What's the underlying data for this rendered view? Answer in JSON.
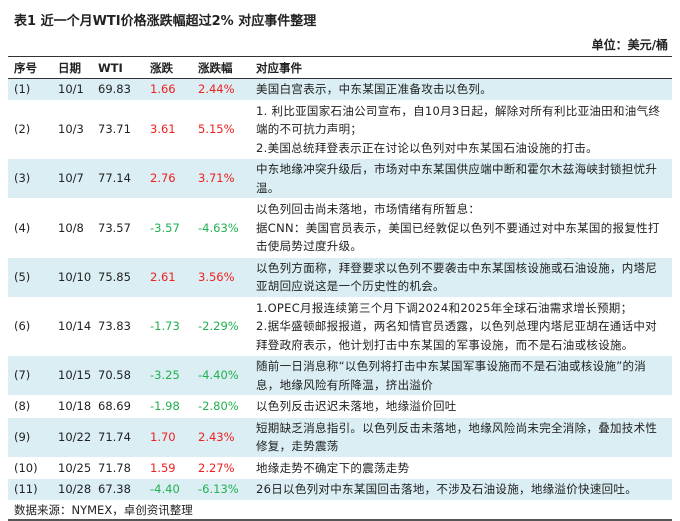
{
  "title": "表1 近一个月WTI价格涨跌幅超过2% 对应事件整理",
  "unit": "单位：美元/桶",
  "headers": [
    "序号",
    "日期",
    "WTI",
    "涨跌",
    "涨跌幅",
    "对应事件"
  ],
  "rows": [
    {
      "no": "(1)",
      "date": "10/1",
      "wti": "69.83",
      "chg": "1.66",
      "pct": "2.44%",
      "dir": "up",
      "event": [
        "美国白宫表示，中东某国正准备攻击以色列。"
      ]
    },
    {
      "no": "(2)",
      "date": "10/3",
      "wti": "73.71",
      "chg": "3.61",
      "pct": "5.15%",
      "dir": "up",
      "event": [
        "1. 利比亚国家石油公司宣布，自10月3日起，解除对所有利比亚油田和油气终端的不可抗力声明；",
        "2.美国总统拜登表示正在讨论以色列对中东某国石油设施的打击。"
      ]
    },
    {
      "no": "(3)",
      "date": "10/7",
      "wti": "77.14",
      "chg": "2.76",
      "pct": "3.71%",
      "dir": "up",
      "event": [
        "中东地缘冲突升级后，市场对中东某国供应端中断和霍尔木兹海峡封锁担忧升温。"
      ]
    },
    {
      "no": "(4)",
      "date": "10/8",
      "wti": "73.57",
      "chg": "-3.57",
      "pct": "-4.63%",
      "dir": "down",
      "event": [
        "以色列回击尚未落地，市场情绪有所暂息：",
        "据CNN：美国官员表示，美国已经敦促以色列不要通过对中东某国的报复性打击使局势过度升级。"
      ]
    },
    {
      "no": "(5)",
      "date": "10/10",
      "wti": "75.85",
      "chg": "2.61",
      "pct": "3.56%",
      "dir": "up",
      "event": [
        "以色列方面称，拜登要求以色列不要袭击中东某国核设施或石油设施，内塔尼亚胡回应说这是一个历史性的机会。"
      ]
    },
    {
      "no": "(6)",
      "date": "10/14",
      "wti": "73.83",
      "chg": "-1.73",
      "pct": "-2.29%",
      "dir": "down",
      "event": [
        "1.OPEC月报连续第三个月下调2024和2025年全球石油需求增长预期；",
        "2.据华盛顿邮报报道，两名知情官员透露，以色列总理内塔尼亚胡在通话中对拜登政府表示，他计划打击中东某国的军事设施，而不是石油或核设施。"
      ]
    },
    {
      "no": "(7)",
      "date": "10/15",
      "wti": "70.58",
      "chg": "-3.25",
      "pct": "-4.40%",
      "dir": "down",
      "event": [
        "随前一日消息称“以色列将打击中东某国军事设施而不是石油或核设施”的消息，地缘风险有所降温，挤出溢价"
      ]
    },
    {
      "no": "(8)",
      "date": "10/18",
      "wti": "68.69",
      "chg": "-1.98",
      "pct": "-2.80%",
      "dir": "down",
      "event": [
        "以色列反击迟迟未落地，地缘溢价回吐"
      ]
    },
    {
      "no": "(9)",
      "date": "10/22",
      "wti": "71.74",
      "chg": "1.70",
      "pct": "2.43%",
      "dir": "up",
      "event": [
        "短期缺乏消息指引。以色列反击未落地，地缘风险尚未完全消除，叠加技术性修复，走势震荡"
      ]
    },
    {
      "no": "(10)",
      "date": "10/25",
      "wti": "71.78",
      "chg": "1.59",
      "pct": "2.27%",
      "dir": "up",
      "event": [
        "地缘走势不确定下的震荡走势"
      ]
    },
    {
      "no": "(11)",
      "date": "10/28",
      "wti": "67.38",
      "chg": "-4.40",
      "pct": "-6.13%",
      "dir": "down",
      "event": [
        "26日以色列对中东某国回击落地，不涉及石油设施，地缘溢价快速回吐。"
      ]
    }
  ],
  "source": "数据来源：NYMEX，卓创资讯整理",
  "colors": {
    "up": "#f02020",
    "down": "#22b050",
    "row_highlight": "#daeef3"
  }
}
